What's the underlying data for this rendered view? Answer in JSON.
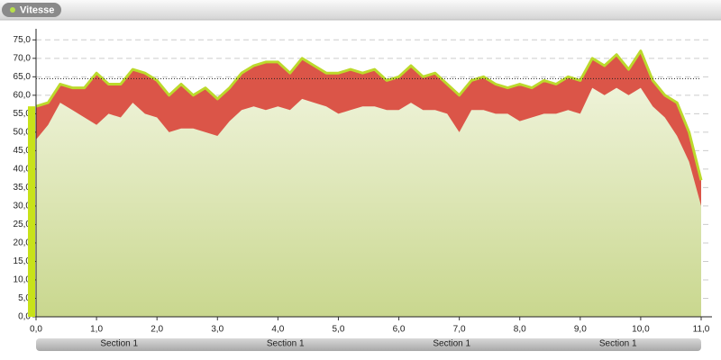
{
  "chart_data": {
    "type": "band",
    "title": "Vitesse",
    "x": [
      0,
      0.2,
      0.4,
      0.6,
      0.8,
      1.0,
      1.2,
      1.4,
      1.6,
      1.8,
      2.0,
      2.2,
      2.4,
      2.6,
      2.8,
      3.0,
      3.2,
      3.4,
      3.6,
      3.8,
      4.0,
      4.2,
      4.4,
      4.6,
      4.8,
      5.0,
      5.2,
      5.4,
      5.6,
      5.8,
      6.0,
      6.2,
      6.4,
      6.6,
      6.8,
      7.0,
      7.2,
      7.4,
      7.6,
      7.8,
      8.0,
      8.2,
      8.4,
      8.6,
      8.8,
      9.0,
      9.2,
      9.4,
      9.6,
      9.8,
      10.0,
      10.2,
      10.4,
      10.6,
      10.8,
      11.0
    ],
    "series": [
      {
        "color": "#bcd92c",
        "values": [
          57,
          58,
          63,
          62,
          62,
          66,
          63,
          63,
          67,
          66,
          64,
          60,
          63,
          60,
          62,
          59,
          62,
          66,
          68,
          69,
          69,
          66,
          70,
          68,
          66,
          66,
          67,
          66,
          67,
          64,
          65,
          68,
          65,
          66,
          63,
          60,
          64,
          65,
          63,
          62,
          63,
          62,
          64,
          63,
          65,
          64,
          70,
          68,
          71,
          67,
          72,
          64,
          60,
          58,
          50,
          37
        ]
      },
      {
        "color": "#db5548",
        "values": [
          48,
          52,
          58,
          56,
          54,
          52,
          55,
          54,
          58,
          55,
          54,
          50,
          51,
          51,
          50,
          49,
          53,
          56,
          57,
          56,
          57,
          56,
          59,
          58,
          57,
          55,
          56,
          57,
          57,
          56,
          56,
          58,
          56,
          56,
          55,
          50,
          56,
          56,
          55,
          55,
          53,
          54,
          55,
          55,
          56,
          55,
          62,
          60,
          62,
          60,
          62,
          57,
          54,
          49,
          42,
          30
        ]
      }
    ],
    "reference_line": 64.5,
    "sections": [
      "Section 1",
      "Section 1",
      "Section 1",
      "Section 1"
    ],
    "xlim": [
      0,
      11
    ],
    "ylim": [
      0,
      78
    ],
    "xticks": [
      {
        "value": 0,
        "label": "0,0"
      },
      {
        "value": 1,
        "label": "1,0"
      },
      {
        "value": 2,
        "label": "2,0"
      },
      {
        "value": 3,
        "label": "3,0"
      },
      {
        "value": 4,
        "label": "4,0"
      },
      {
        "value": 5,
        "label": "5,0"
      },
      {
        "value": 6,
        "label": "6,0"
      },
      {
        "value": 7,
        "label": "7,0"
      },
      {
        "value": 8,
        "label": "8,0"
      },
      {
        "value": 9,
        "label": "9,0"
      },
      {
        "value": 10,
        "label": "10,0"
      },
      {
        "value": 11,
        "label": "11,0"
      }
    ],
    "yticks": [
      {
        "value": 0,
        "label": "0,0"
      },
      {
        "value": 5,
        "label": "5,0"
      },
      {
        "value": 10,
        "label": "10,0"
      },
      {
        "value": 15,
        "label": "15,0"
      },
      {
        "value": 20,
        "label": "20,0"
      },
      {
        "value": 25,
        "label": "25,0"
      },
      {
        "value": 30,
        "label": "30,0"
      },
      {
        "value": 35,
        "label": "35,0"
      },
      {
        "value": 40,
        "label": "40,0"
      },
      {
        "value": 45,
        "label": "45,0"
      },
      {
        "value": 50,
        "label": "50,0"
      },
      {
        "value": 55,
        "label": "55,0"
      },
      {
        "value": 60,
        "label": "60,0"
      },
      {
        "value": 65,
        "label": "65,0"
      },
      {
        "value": 70,
        "label": "70,0"
      },
      {
        "value": 75,
        "label": "75,0"
      }
    ],
    "grid": true
  }
}
